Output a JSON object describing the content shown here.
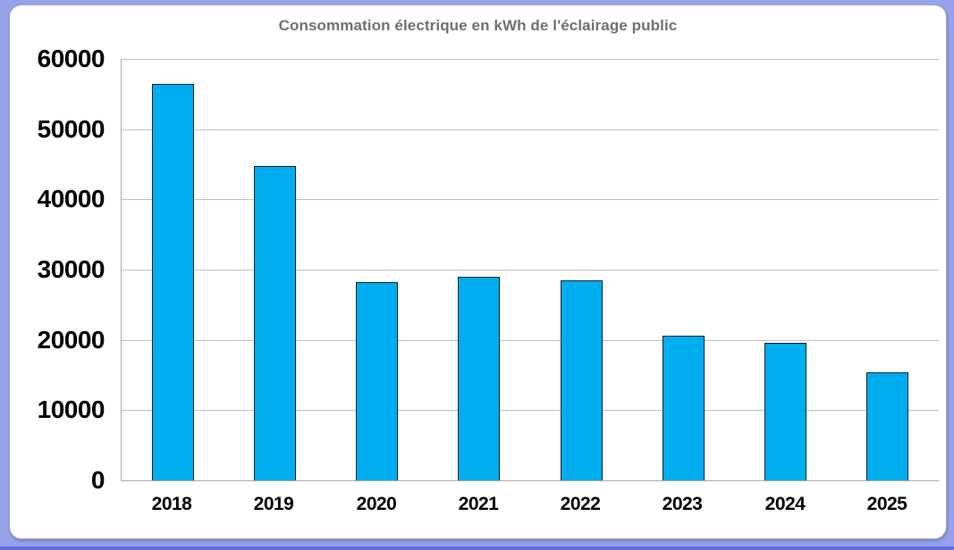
{
  "window": {
    "frame_border_color": "#98A2EC",
    "frame_bottom_edge_color": "#5F6FD9",
    "card_background": "#FFFFFF"
  },
  "chart_data": {
    "type": "bar",
    "title": "Consommation électrique en kWh de l'éclairage public",
    "title_color": "#6F6F6F",
    "categories": [
      "2018",
      "2019",
      "2020",
      "2021",
      "2022",
      "2023",
      "2024",
      "2025"
    ],
    "values": [
      56500,
      44700,
      28200,
      29000,
      28500,
      20600,
      19600,
      15400
    ],
    "unit": "kWh",
    "xlabel": "",
    "ylabel": "",
    "ylim": [
      0,
      60000
    ],
    "y_ticks": [
      0,
      10000,
      20000,
      30000,
      40000,
      50000,
      60000
    ],
    "grid": "horizontal",
    "legend_position": "none",
    "bar_fill_color": "#00AEEF",
    "bar_border_color": "#0B1E33",
    "gridline_color": "#BFBFBF",
    "axis_line_color": "#A6A6A6",
    "tick_label_color": "#000000"
  }
}
